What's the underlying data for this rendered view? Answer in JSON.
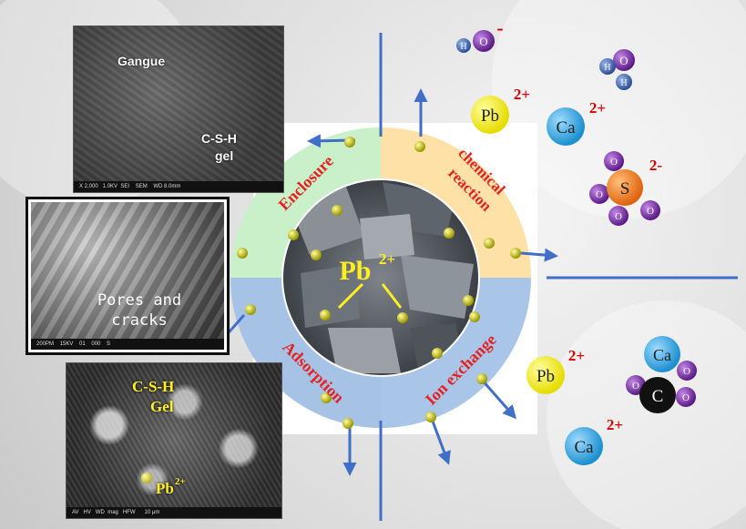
{
  "sem_top": {
    "label_gangue": "Gangue",
    "label_csh_line1": "C-S-H",
    "label_csh_line2": "gel",
    "footer": "X 2,000   1.0KV  SEI    SEM    WD 8.0mm"
  },
  "sem_middle": {
    "label_line1": "Pores and",
    "label_line2": "cracks",
    "footer": "200PM    15KV    01    000    S"
  },
  "sem_bottom": {
    "label_csh_line1": "C-S-H",
    "label_csh_line2": "Gel",
    "label_pb": "Pb",
    "label_pb_charge": "2+",
    "footer": "AV   HV   WD  mag   HFW      10 μm"
  },
  "center": {
    "ion": "Pb",
    "charge": "2+"
  },
  "quadrants": {
    "enclosure": "Enclosure",
    "chemical_line1": "chemical",
    "chemical_line2": "reaction",
    "adsorption": "Adsorption",
    "ion_exchange": "Ion exchange"
  },
  "ions": {
    "hydroxide": {
      "o": "O",
      "h": "H",
      "charge": "-"
    },
    "water": {
      "o": "O",
      "h1": "H",
      "h2": "H"
    },
    "pb_upper": {
      "label": "Pb",
      "charge": "2+"
    },
    "ca_upper": {
      "label": "Ca",
      "charge": "2+"
    },
    "sulfate": {
      "center": "S",
      "o": "O",
      "charge": "2-"
    },
    "pb_lower": {
      "label": "Pb",
      "charge": "2+"
    },
    "ca_lower": {
      "label": "Ca",
      "charge": "2+"
    },
    "carbonate": {
      "ca": "Ca",
      "c": "C",
      "o": "O"
    }
  },
  "colors": {
    "enclosure": "#c9f0c9",
    "chemical": "#fde1a6",
    "adsorption": "#a6c3e6",
    "ion_exchange": "#a9c5e7",
    "label_red": "#e52222",
    "axis_blue": "#3f6fc6",
    "pb_yellow": "#f6f21a",
    "ca_blue": "#2a9ed9",
    "oxygen_purple": "#7a2a9e",
    "hydrogen_blue": "#3a5fa6",
    "sulfur_orange": "#ef7c1f"
  }
}
